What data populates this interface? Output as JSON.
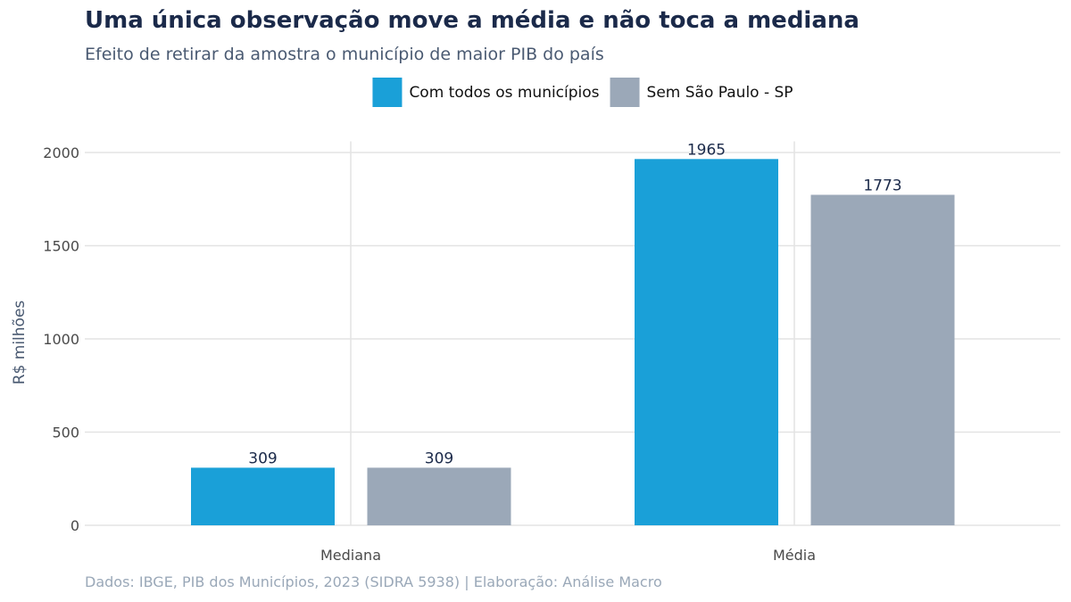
{
  "chart_data": {
    "type": "bar",
    "title": "Uma única observação move a média e não toca a mediana",
    "subtitle": "Efeito de retirar da amostra o município de maior PIB do país",
    "caption": "Dados: IBGE, PIB dos Municípios, 2023 (SIDRA 5938) | Elaboração: Análise Macro",
    "xlabel": "",
    "ylabel": "R$ milhões",
    "categories": [
      "Mediana",
      "Média"
    ],
    "series": [
      {
        "name": "Com todos os municípios",
        "values": [
          309,
          1965
        ],
        "color": "#1aa0d8"
      },
      {
        "name": "Sem São Paulo - SP",
        "values": [
          309,
          1773
        ],
        "color": "#9ba8b8"
      }
    ],
    "yticks": [
      0,
      500,
      1000,
      1500,
      2000
    ],
    "ylim": [
      0,
      2060
    ],
    "grid": true,
    "legend_position": "top-center"
  }
}
